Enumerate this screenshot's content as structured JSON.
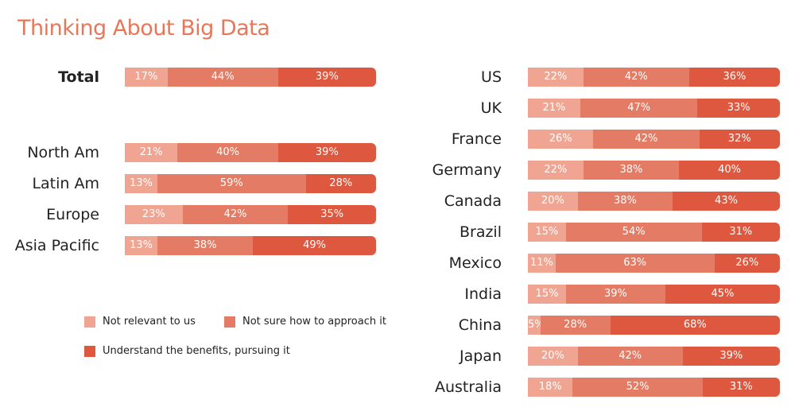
{
  "title": "Thinking About Big Data",
  "colors": {
    "not_relevant": "#f0a592",
    "not_sure": "#e47c65",
    "understand": "#dd583e",
    "title": "#e8775a"
  },
  "legend": [
    {
      "label": "Not relevant to us",
      "color": "#f0a592"
    },
    {
      "label": "Not sure how to approach it",
      "color": "#e47c65"
    },
    {
      "label": "Understand the benefits, pursuing it",
      "color": "#dd583e"
    }
  ],
  "chart_data": {
    "type": "bar",
    "stacked": true,
    "orientation": "horizontal",
    "title": "Thinking About Big Data",
    "series_colors": [
      "#f0a592",
      "#e47c65",
      "#dd583e"
    ],
    "series": [
      {
        "name": "Not relevant to us"
      },
      {
        "name": "Not sure how to approach it"
      },
      {
        "name": "Understand the benefits, pursuing it"
      }
    ],
    "left_panel": [
      {
        "label": "Total",
        "bold": true,
        "values": [
          17,
          44,
          39
        ]
      },
      {
        "label": "North Am",
        "values": [
          21,
          40,
          39
        ]
      },
      {
        "label": "Latin Am",
        "values": [
          13,
          59,
          28
        ]
      },
      {
        "label": "Europe",
        "values": [
          23,
          42,
          35
        ]
      },
      {
        "label": "Asia Pacific",
        "values": [
          13,
          38,
          49
        ]
      }
    ],
    "right_panel": [
      {
        "label": "US",
        "values": [
          22,
          42,
          36
        ]
      },
      {
        "label": "UK",
        "values": [
          21,
          47,
          33
        ]
      },
      {
        "label": "France",
        "values": [
          26,
          42,
          32
        ]
      },
      {
        "label": "Germany",
        "values": [
          22,
          38,
          40
        ]
      },
      {
        "label": "Canada",
        "values": [
          20,
          38,
          43
        ]
      },
      {
        "label": "Brazil",
        "values": [
          15,
          54,
          31
        ]
      },
      {
        "label": "Mexico",
        "values": [
          11,
          63,
          26
        ]
      },
      {
        "label": "India",
        "values": [
          15,
          39,
          45
        ]
      },
      {
        "label": "China",
        "values": [
          5,
          28,
          68
        ]
      },
      {
        "label": "Japan",
        "values": [
          20,
          42,
          39
        ]
      },
      {
        "label": "Australia",
        "values": [
          18,
          52,
          31
        ]
      }
    ]
  }
}
